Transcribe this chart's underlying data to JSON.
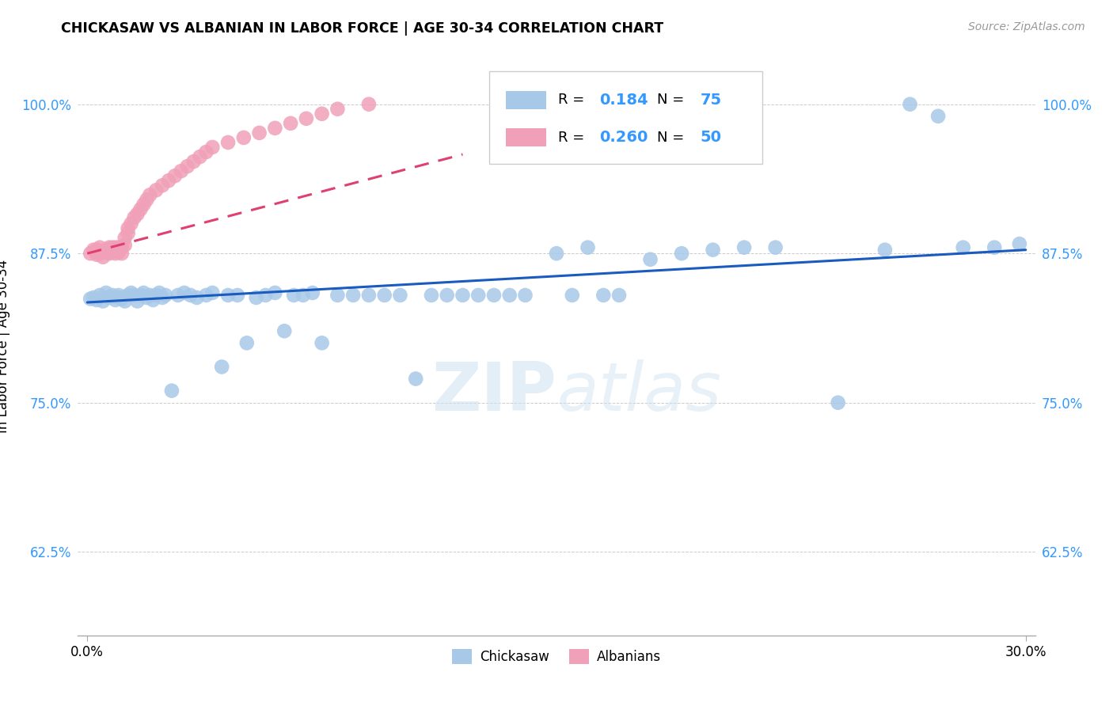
{
  "title": "CHICKASAW VS ALBANIAN IN LABOR FORCE | AGE 30-34 CORRELATION CHART",
  "source": "Source: ZipAtlas.com",
  "ylabel_label": "In Labor Force | Age 30-34",
  "ytick_labels": [
    "62.5%",
    "75.0%",
    "87.5%",
    "100.0%"
  ],
  "ytick_values": [
    0.625,
    0.75,
    0.875,
    1.0
  ],
  "xtick_labels": [
    "0.0%",
    "30.0%"
  ],
  "xlim": [
    -0.003,
    0.303
  ],
  "ylim": [
    0.555,
    1.04
  ],
  "legend_r1": "0.184",
  "legend_n1": "75",
  "legend_r2": "0.260",
  "legend_n2": "50",
  "color_chickasaw": "#a8c8e8",
  "color_albanian": "#f0a0b8",
  "color_line_chickasaw": "#1a5bbf",
  "color_line_albanian": "#e04070",
  "watermark_zip": "ZIP",
  "watermark_atlas": "atlas",
  "chickasaw_x": [
    0.001,
    0.002,
    0.003,
    0.004,
    0.005,
    0.006,
    0.007,
    0.008,
    0.009,
    0.01,
    0.01,
    0.011,
    0.012,
    0.013,
    0.014,
    0.015,
    0.016,
    0.017,
    0.018,
    0.019,
    0.02,
    0.021,
    0.022,
    0.023,
    0.024,
    0.025,
    0.027,
    0.029,
    0.031,
    0.033,
    0.035,
    0.038,
    0.04,
    0.043,
    0.045,
    0.048,
    0.051,
    0.054,
    0.057,
    0.06,
    0.063,
    0.066,
    0.069,
    0.072,
    0.075,
    0.08,
    0.085,
    0.09,
    0.095,
    0.1,
    0.105,
    0.11,
    0.115,
    0.12,
    0.125,
    0.13,
    0.135,
    0.14,
    0.15,
    0.155,
    0.16,
    0.165,
    0.17,
    0.18,
    0.19,
    0.2,
    0.21,
    0.22,
    0.24,
    0.255,
    0.263,
    0.272,
    0.28,
    0.29,
    0.298
  ],
  "chickasaw_y": [
    0.837,
    0.838,
    0.836,
    0.84,
    0.835,
    0.842,
    0.838,
    0.84,
    0.836,
    0.84,
    0.838,
    0.837,
    0.835,
    0.84,
    0.842,
    0.84,
    0.835,
    0.84,
    0.842,
    0.838,
    0.84,
    0.836,
    0.84,
    0.842,
    0.838,
    0.84,
    0.76,
    0.84,
    0.842,
    0.84,
    0.838,
    0.84,
    0.842,
    0.78,
    0.84,
    0.84,
    0.8,
    0.838,
    0.84,
    0.842,
    0.81,
    0.84,
    0.84,
    0.842,
    0.8,
    0.84,
    0.84,
    0.84,
    0.84,
    0.84,
    0.77,
    0.84,
    0.84,
    0.84,
    0.84,
    0.84,
    0.84,
    0.84,
    0.875,
    0.84,
    0.88,
    0.84,
    0.84,
    0.87,
    0.875,
    0.878,
    0.88,
    0.88,
    0.75,
    0.878,
    1.0,
    0.99,
    0.88,
    0.88,
    0.883
  ],
  "albanian_x": [
    0.001,
    0.002,
    0.003,
    0.003,
    0.004,
    0.004,
    0.005,
    0.005,
    0.006,
    0.006,
    0.007,
    0.007,
    0.008,
    0.008,
    0.009,
    0.009,
    0.01,
    0.01,
    0.011,
    0.011,
    0.012,
    0.012,
    0.013,
    0.013,
    0.014,
    0.015,
    0.016,
    0.017,
    0.018,
    0.019,
    0.02,
    0.022,
    0.024,
    0.026,
    0.028,
    0.03,
    0.032,
    0.034,
    0.036,
    0.038,
    0.04,
    0.045,
    0.05,
    0.055,
    0.06,
    0.065,
    0.07,
    0.075,
    0.08,
    0.09
  ],
  "albanian_y": [
    0.875,
    0.878,
    0.874,
    0.878,
    0.875,
    0.88,
    0.876,
    0.872,
    0.878,
    0.876,
    0.88,
    0.875,
    0.88,
    0.876,
    0.88,
    0.875,
    0.88,
    0.876,
    0.88,
    0.875,
    0.882,
    0.888,
    0.892,
    0.896,
    0.9,
    0.905,
    0.908,
    0.912,
    0.916,
    0.92,
    0.924,
    0.928,
    0.932,
    0.936,
    0.94,
    0.944,
    0.948,
    0.952,
    0.956,
    0.96,
    0.964,
    0.968,
    0.972,
    0.976,
    0.98,
    0.984,
    0.988,
    0.992,
    0.996,
    1.0
  ],
  "line_ck_x0": 0.0,
  "line_ck_y0": 0.834,
  "line_ck_x1": 0.3,
  "line_ck_y1": 0.878,
  "line_al_x0": 0.0,
  "line_al_y0": 0.875,
  "line_al_x1": 0.12,
  "line_al_y1": 0.958
}
